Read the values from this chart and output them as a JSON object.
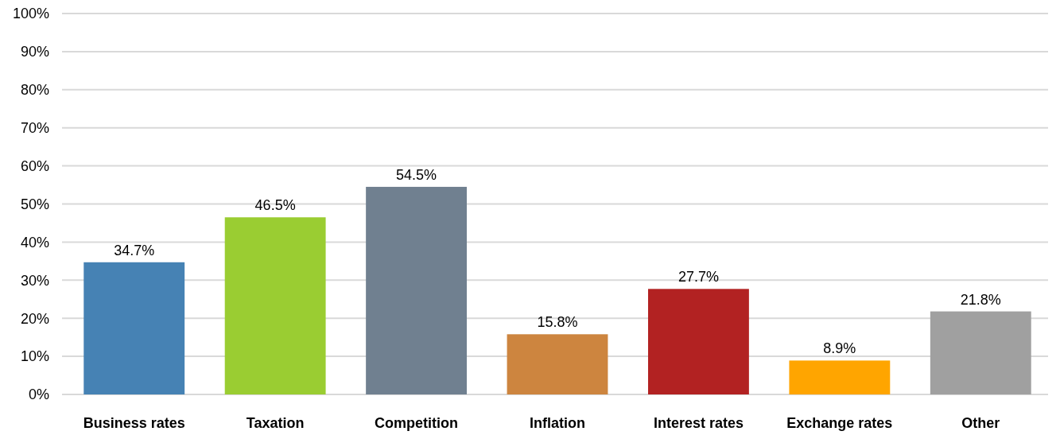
{
  "chart_data": {
    "type": "bar",
    "categories": [
      "Business rates",
      "Taxation",
      "Competition",
      "Inflation",
      "Interest rates",
      "Exchange rates",
      "Other"
    ],
    "values": [
      34.7,
      46.5,
      54.5,
      15.8,
      27.7,
      8.9,
      21.8
    ],
    "colors": [
      "#4682b4",
      "#9acd32",
      "#708090",
      "#cd853f",
      "#b22222",
      "#ffa500",
      "#a0a0a0"
    ],
    "value_labels": [
      "34.7%",
      "46.5%",
      "54.5%",
      "15.8%",
      "27.7%",
      "8.9%",
      "21.8%"
    ],
    "ylim": [
      0,
      100
    ],
    "yticks": [
      {
        "value": 0,
        "label": "0%"
      },
      {
        "value": 10,
        "label": "10%"
      },
      {
        "value": 20,
        "label": "20%"
      },
      {
        "value": 30,
        "label": "30%"
      },
      {
        "value": 40,
        "label": "40%"
      },
      {
        "value": 50,
        "label": "50%"
      },
      {
        "value": 60,
        "label": "60%"
      },
      {
        "value": 70,
        "label": "70%"
      },
      {
        "value": 80,
        "label": "80%"
      },
      {
        "value": 90,
        "label": "90%"
      },
      {
        "value": 100,
        "label": "100%"
      }
    ],
    "grid": "y"
  }
}
